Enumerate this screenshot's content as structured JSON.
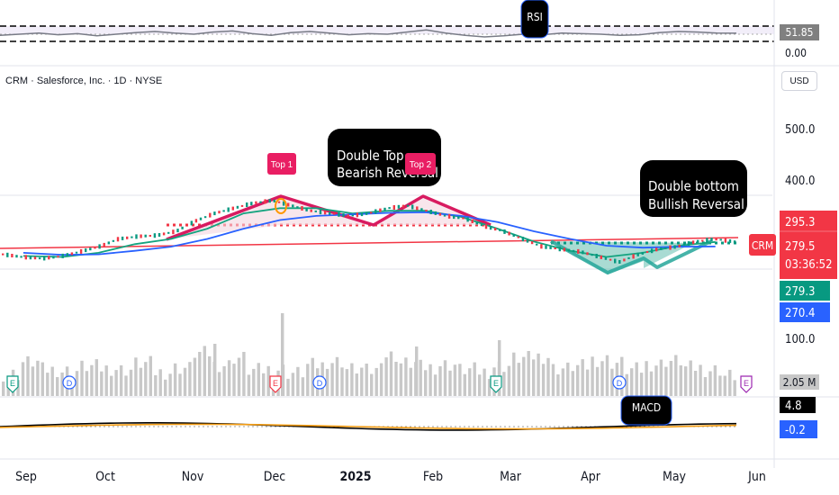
{
  "header": {
    "symbol_title": "CRM · Salesforce, Inc. · 1D · NYSE",
    "currency_label": "USD"
  },
  "chart_data": {
    "type": "line",
    "symbol": "CRM",
    "x_tick_labels": [
      "Sep",
      "Oct",
      "Nov",
      "Dec",
      "2025",
      "Feb",
      "Mar",
      "Apr",
      "May",
      "Jun"
    ],
    "y_tick_labels": [
      "500.0",
      "400.0",
      "100.0"
    ],
    "price_labels": {
      "upper_level": "295.3",
      "last_price": "279.5",
      "countdown": "03:36:52",
      "ema_fast": "279.3",
      "ema_slow": "270.4"
    },
    "series": [
      {
        "type": "candlestick",
        "x": [
          "2024-08-29",
          "2024-09-06",
          "2024-09-13",
          "2024-09-20",
          "2024-09-27",
          "2024-10-04",
          "2024-10-11",
          "2024-10-18",
          "2024-10-25",
          "2024-11-01",
          "2024-11-08",
          "2024-11-15",
          "2024-11-22",
          "2024-11-29",
          "2024-12-06",
          "2024-12-13",
          "2024-12-20",
          "2024-12-27",
          "2025-01-03",
          "2025-01-10",
          "2025-01-17",
          "2025-01-24",
          "2025-01-31",
          "2025-02-07",
          "2025-02-14",
          "2025-02-21",
          "2025-02-28",
          "2025-03-07",
          "2025-03-14",
          "2025-03-21",
          "2025-03-28",
          "2025-04-04",
          "2025-04-11",
          "2025-04-18",
          "2025-04-25",
          "2025-05-02",
          "2025-05-09",
          "2025-05-16",
          "2025-05-23"
        ],
        "y": [
          255,
          250,
          247,
          251,
          260,
          270,
          285,
          290,
          292,
          300,
          320,
          335,
          345,
          355,
          360,
          350,
          340,
          335,
          330,
          335,
          345,
          350,
          340,
          330,
          325,
          310,
          300,
          285,
          270,
          265,
          260,
          250,
          240,
          255,
          265,
          270,
          280,
          285,
          279.5
        ]
      },
      {
        "name": "EMA fast",
        "color": "#14a37f",
        "x": [
          "2024-08-29",
          "2024-09-13",
          "2024-09-27",
          "2024-10-11",
          "2024-10-25",
          "2024-11-08",
          "2024-11-22",
          "2024-12-06",
          "2024-12-20",
          "2025-01-03",
          "2025-01-17",
          "2025-01-31",
          "2025-02-14",
          "2025-02-28",
          "2025-03-14",
          "2025-03-28",
          "2025-04-11",
          "2025-04-25",
          "2025-05-09",
          "2025-05-23"
        ],
        "y": [
          252,
          250,
          258,
          275,
          285,
          305,
          335,
          345,
          345,
          335,
          340,
          340,
          328,
          305,
          280,
          262,
          250,
          258,
          272,
          279.3
        ]
      },
      {
        "name": "EMA slow",
        "color": "#2962ff",
        "x": [
          "2024-08-29",
          "2024-09-13",
          "2024-09-27",
          "2024-10-11",
          "2024-10-25",
          "2024-11-08",
          "2024-11-22",
          "2024-12-06",
          "2024-12-20",
          "2025-01-03",
          "2025-01-17",
          "2025-01-31",
          "2025-02-14",
          "2025-02-28",
          "2025-03-14",
          "2025-03-28",
          "2025-04-11",
          "2025-04-25",
          "2025-05-09",
          "2025-05-23"
        ],
        "y": [
          258,
          254,
          255,
          262,
          270,
          285,
          305,
          322,
          330,
          333,
          336,
          337,
          330,
          318,
          300,
          285,
          272,
          268,
          270,
          270.4
        ]
      }
    ],
    "ylim": [
      220,
      560
    ],
    "annotations": {
      "double_top": [
        "Double Top",
        "Bearish Reversal"
      ],
      "double_bottom": [
        "Double bottom",
        "Bullish Reversal"
      ],
      "top1": "Top 1",
      "top2": "Top 2",
      "symbol_tag": "CRM"
    },
    "rsi": {
      "label": "RSI",
      "value": "51.85",
      "zero": "0.00",
      "values": [
        48,
        50,
        52,
        49,
        51,
        47,
        50,
        53,
        55,
        52,
        50,
        54,
        56,
        51,
        48,
        53,
        55,
        52,
        49,
        51,
        50,
        54,
        58,
        52,
        48,
        45,
        47,
        50,
        49,
        52,
        51,
        50,
        48,
        49,
        53,
        55,
        54,
        52,
        51.85
      ]
    },
    "volume": {
      "value_label": "2.05 M",
      "values_m": [
        2.3,
        4.2,
        3.0,
        2.8,
        3.5,
        3.2,
        3.0,
        4.0,
        2.6,
        3.3,
        5.6,
        3.8,
        4.9,
        2.9,
        3.1,
        2.5,
        3.7,
        4.3,
        3.1,
        2.8,
        5.2,
        4.0,
        3.4,
        3.8,
        3.0,
        2.7,
        3.6,
        4.8,
        5.1,
        3.2,
        3.5,
        4.6,
        4.1,
        3.0,
        3.9,
        4.4,
        3.3,
        3.0,
        2.05
      ],
      "event_markers": [
        "E",
        "D",
        "E",
        "D",
        "E",
        "D",
        "E"
      ]
    },
    "macd": {
      "label": "MACD",
      "macd_value": "4.8",
      "signal_value": "-0.2"
    }
  }
}
